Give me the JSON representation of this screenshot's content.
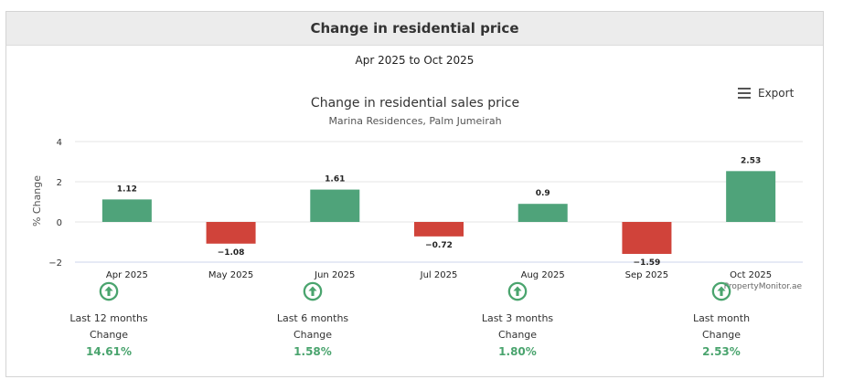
{
  "card": {
    "title": "Change in residential price"
  },
  "period": "Apr 2025 to Oct 2025",
  "export_label": "Export",
  "watermark": "PropertyMonitor.ae",
  "colors": {
    "positive": "#4fa37a",
    "negative": "#d0433a",
    "stat_value": "#4aa46e"
  },
  "chart_data": {
    "type": "bar",
    "title": "Change in residential sales price",
    "subtitle": "Marina Residences, Palm Jumeirah",
    "ylabel": "% Change",
    "xlabel": "",
    "categories": [
      "Apr 2025",
      "May 2025",
      "Jun 2025",
      "Jul 2025",
      "Aug 2025",
      "Sep 2025",
      "Oct 2025"
    ],
    "values": [
      1.12,
      -1.08,
      1.61,
      -0.72,
      0.9,
      -1.59,
      2.53
    ],
    "value_labels": [
      "1.12",
      "−1.08",
      "1.61",
      "−0.72",
      "0.9",
      "−1.59",
      "2.53"
    ],
    "ylim": [
      -2,
      4
    ],
    "yticks": [
      -2,
      0,
      2,
      4
    ],
    "ytick_labels": [
      "−2",
      "0",
      "2",
      "4"
    ],
    "grid": true,
    "legend": "none"
  },
  "stats": [
    {
      "period": "Last 12 months",
      "caption": "Change",
      "value": "14.61%",
      "icon": "arrow-up-circle-icon"
    },
    {
      "period": "Last 6 months",
      "caption": "Change",
      "value": "1.58%",
      "icon": "arrow-up-circle-icon"
    },
    {
      "period": "Last 3 months",
      "caption": "Change",
      "value": "1.80%",
      "icon": "arrow-up-circle-icon"
    },
    {
      "period": "Last month",
      "caption": "Change",
      "value": "2.53%",
      "icon": "arrow-up-circle-icon"
    }
  ]
}
